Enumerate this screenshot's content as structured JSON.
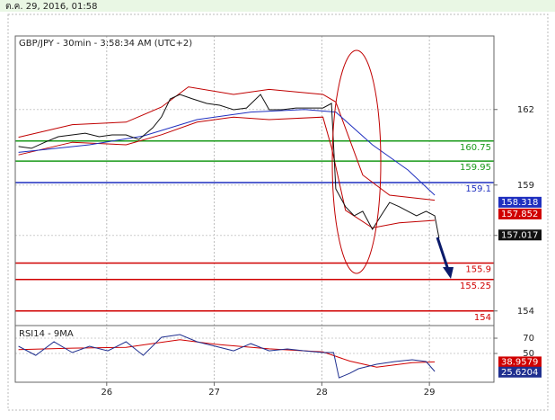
{
  "header": "ต.ค. 29, 2016, 01:58",
  "chart_data": [
    {
      "type": "line",
      "title": "GBP/JPY - 30min - 3:58:34 AM (UTC+2)",
      "xlim": [
        25.15,
        29.6
      ],
      "xticks": [
        26,
        27,
        28,
        29
      ],
      "ylim": [
        153.42,
        164.92
      ],
      "yticks": [
        154,
        157,
        159,
        162
      ],
      "grid": true,
      "series": [
        {
          "color": "#c00000",
          "x": [
            25.18,
            25.68,
            26.18,
            26.51,
            26.76,
            27.18,
            27.51,
            28.01,
            28.13,
            28.38,
            28.63,
            29.05
          ],
          "values": [
            160.9,
            161.4,
            161.5,
            162.1,
            162.9,
            162.6,
            162.8,
            162.6,
            162.3,
            159.4,
            158.6,
            158.4
          ]
        },
        {
          "color": "#c00000",
          "x": [
            25.18,
            25.68,
            26.18,
            26.51,
            26.84,
            27.18,
            27.51,
            28.01,
            28.09,
            28.22,
            28.47,
            28.72,
            29.05
          ],
          "values": [
            160.2,
            160.7,
            160.6,
            161.0,
            161.5,
            161.7,
            161.6,
            161.7,
            160.5,
            158.0,
            157.3,
            157.5,
            157.6
          ]
        },
        {
          "color": "#1f2fbf",
          "x": [
            25.18,
            25.84,
            26.34,
            26.84,
            27.34,
            27.84,
            28.13,
            28.47,
            28.8,
            29.05
          ],
          "values": [
            160.3,
            160.6,
            160.95,
            161.6,
            161.9,
            162.0,
            161.9,
            160.6,
            159.6,
            158.6
          ]
        },
        {
          "color": "#111111",
          "x": [
            25.18,
            25.3,
            25.43,
            25.55,
            25.68,
            25.8,
            25.93,
            26.05,
            26.18,
            26.3,
            26.43,
            26.51,
            26.59,
            26.68,
            26.8,
            26.93,
            27.05,
            27.18,
            27.3,
            27.43,
            27.51,
            27.63,
            27.76,
            27.88,
            28.01,
            28.09,
            28.13,
            28.22,
            28.3,
            28.38,
            28.47,
            28.55,
            28.63,
            28.72,
            28.8,
            28.88,
            28.97,
            29.05,
            29.09
          ],
          "values": [
            160.53,
            160.46,
            160.71,
            160.92,
            160.99,
            161.06,
            160.92,
            160.99,
            160.99,
            160.81,
            161.28,
            161.71,
            162.42,
            162.6,
            162.42,
            162.24,
            162.17,
            161.99,
            162.06,
            162.6,
            161.99,
            161.99,
            162.06,
            162.06,
            162.06,
            162.24,
            158.85,
            158.14,
            157.78,
            157.96,
            157.24,
            157.78,
            158.31,
            158.14,
            157.96,
            157.78,
            157.96,
            157.78,
            156.89
          ]
        }
      ],
      "levels": [
        {
          "value": 160.75,
          "color": "#1a9a1a"
        },
        {
          "value": 159.95,
          "color": "#1a9a1a"
        },
        {
          "value": 159.1,
          "color": "#1f2fbf"
        },
        {
          "value": 155.9,
          "color": "#d00000"
        },
        {
          "value": 155.25,
          "color": "#d00000"
        },
        {
          "value": 154,
          "color": "#d00000"
        }
      ],
      "price_tags": [
        {
          "value": 158.318,
          "color": "#1f2fbf"
        },
        {
          "value": 157.852,
          "color": "#d00000"
        },
        {
          "value": 157.017,
          "color": "#111111"
        }
      ]
    },
    {
      "type": "line",
      "title": "RSI14 - 9MA",
      "ylim": [
        12.4,
        86.5
      ],
      "yticks": [
        70,
        50
      ],
      "series": [
        {
          "color": "#d00000",
          "x": [
            25.18,
            25.68,
            26.18,
            26.68,
            27.01,
            27.51,
            28.01,
            28.26,
            28.51,
            28.84,
            29.05
          ],
          "values": [
            55,
            57,
            58,
            68,
            62,
            56,
            52,
            40,
            32,
            38,
            39
          ]
        },
        {
          "color": "#1f2f8f",
          "x": [
            25.18,
            25.34,
            25.51,
            25.68,
            25.84,
            26.01,
            26.18,
            26.34,
            26.51,
            26.68,
            26.84,
            27.01,
            27.18,
            27.34,
            27.51,
            27.68,
            27.84,
            28.01,
            28.11,
            28.16,
            28.26,
            28.34,
            28.51,
            28.68,
            28.84,
            28.97,
            29.05
          ],
          "values": [
            59.4,
            47.6,
            65.3,
            51.2,
            59.4,
            53.5,
            65.3,
            47.6,
            71.2,
            74.7,
            65.3,
            59.4,
            53.5,
            62.9,
            53.5,
            55.9,
            53.5,
            51.2,
            51.2,
            18.2,
            24.1,
            30.0,
            35.9,
            39.4,
            41.8,
            39.4,
            26.5
          ]
        }
      ],
      "price_tags": [
        {
          "value": 38.9579,
          "color": "#d00000"
        },
        {
          "value": 25.6204,
          "color": "#1f2f8f"
        }
      ]
    }
  ]
}
